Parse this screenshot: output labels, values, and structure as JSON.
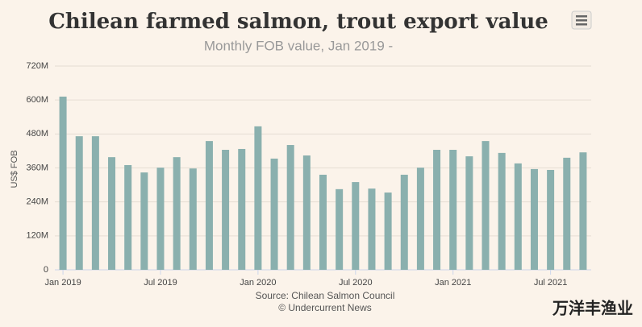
{
  "chart_data": {
    "type": "bar",
    "title": "Chilean farmed salmon, trout export value",
    "subtitle": "Monthly FOB value, Jan 2019 -",
    "y_label": "US$ FOB",
    "source": "Source: Chilean Salmon Council",
    "credit": "© Undercurrent News",
    "watermark": "万洋丰渔业",
    "categories": [
      "Jan 2019",
      null,
      null,
      null,
      null,
      null,
      "Jul 2019",
      null,
      null,
      null,
      null,
      null,
      "Jan 2020",
      null,
      null,
      null,
      null,
      null,
      "Jul 2020",
      null,
      null,
      null,
      null,
      null,
      "Jan 2021",
      null,
      null,
      null,
      null,
      null,
      "Jul 2021",
      null,
      null
    ],
    "values": [
      612000000,
      472000000,
      472000000,
      398000000,
      370000000,
      344000000,
      361000000,
      398000000,
      358000000,
      455000000,
      424000000,
      427000000,
      507000000,
      393000000,
      441000000,
      404000000,
      336000000,
      285000000,
      310000000,
      287000000,
      273000000,
      336000000,
      361000000,
      424000000,
      424000000,
      401000000,
      455000000,
      413000000,
      376000000,
      356000000,
      353000000,
      396000000,
      415000000
    ],
    "color": "#8ab0ae",
    "ylim": [
      0,
      720000000
    ],
    "yticks": [
      0,
      {
        "value": 120000000,
        "label": "120M"
      },
      {
        "value": 240000000,
        "label": "240M"
      },
      {
        "value": 360000000,
        "label": "360M"
      },
      {
        "value": 480000000,
        "label": "480M"
      },
      {
        "value": 600000000,
        "label": "600M"
      },
      {
        "value": 720000000,
        "label": "720M"
      }
    ],
    "grid": true
  }
}
